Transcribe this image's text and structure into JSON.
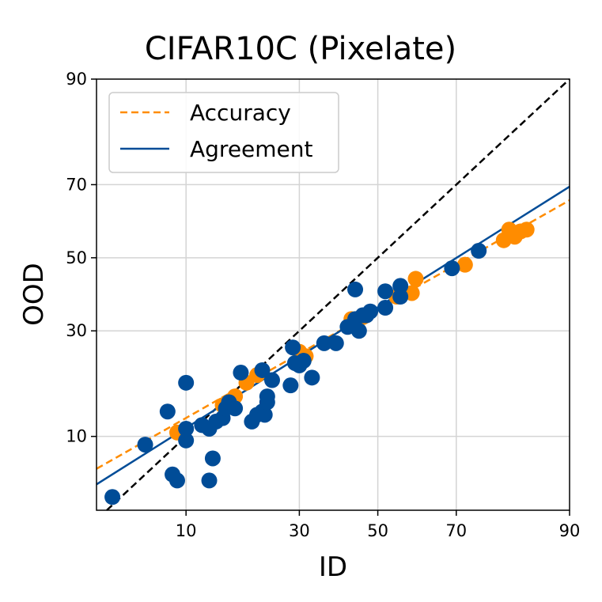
{
  "chart_data": {
    "type": "scatter",
    "title": "CIFAR10C (Pixelate)",
    "xlabel": "ID",
    "ylabel": "OOD",
    "xscale": "probit",
    "yscale": "probit",
    "xlim": [
      3,
      90
    ],
    "ylim": [
      3.5,
      90
    ],
    "xticks": [
      10,
      30,
      50,
      70,
      90
    ],
    "yticks": [
      10,
      30,
      50,
      70,
      90
    ],
    "grid": true,
    "legend": "top-left",
    "colors": {
      "accuracy": "#ff8c00",
      "agreement": "#004c97",
      "diagonal": "#000000",
      "grid": "#d4d4d4"
    },
    "series": [
      {
        "name": "Accuracy",
        "style": "dashed",
        "points": [
          [
            9,
            10.5
          ],
          [
            15,
            14.5
          ],
          [
            17,
            16
          ],
          [
            19,
            18.5
          ],
          [
            21,
            20
          ],
          [
            30,
            25
          ],
          [
            31.5,
            24
          ],
          [
            43,
            33
          ],
          [
            46,
            33.5
          ],
          [
            55,
            39
          ],
          [
            59,
            40
          ],
          [
            60,
            44
          ],
          [
            72,
            48
          ],
          [
            80,
            55
          ],
          [
            81,
            58
          ],
          [
            82,
            56
          ],
          [
            83,
            57.5
          ],
          [
            84,
            58
          ]
        ],
        "fit": [
          [
            3,
            6.5
          ],
          [
            90,
            66
          ]
        ]
      },
      {
        "name": "Agreement",
        "style": "solid",
        "points": [
          [
            3.8,
            4.3
          ],
          [
            6,
            9
          ],
          [
            8,
            13.5
          ],
          [
            8.5,
            6
          ],
          [
            9,
            5.5
          ],
          [
            10,
            9.5
          ],
          [
            10,
            11
          ],
          [
            10,
            18.5
          ],
          [
            12,
            11.5
          ],
          [
            13,
            11
          ],
          [
            13,
            5.5
          ],
          [
            13.5,
            7.5
          ],
          [
            14,
            12
          ],
          [
            15,
            12.5
          ],
          [
            15.5,
            14
          ],
          [
            16,
            15
          ],
          [
            17,
            14
          ],
          [
            18,
            20.5
          ],
          [
            20,
            12
          ],
          [
            21,
            13
          ],
          [
            22,
            13.5
          ],
          [
            22,
            21
          ],
          [
            22.5,
            13
          ],
          [
            23,
            15
          ],
          [
            23,
            16
          ],
          [
            24,
            19
          ],
          [
            28,
            18
          ],
          [
            28.5,
            26
          ],
          [
            29,
            22.5
          ],
          [
            30,
            22
          ],
          [
            31,
            23
          ],
          [
            33,
            19.5
          ],
          [
            36,
            27
          ],
          [
            39,
            27
          ],
          [
            42,
            31
          ],
          [
            44,
            33
          ],
          [
            44,
            41
          ],
          [
            45,
            30
          ],
          [
            46,
            34
          ],
          [
            47,
            34
          ],
          [
            48,
            35
          ],
          [
            52,
            36
          ],
          [
            52,
            40.5
          ],
          [
            56,
            42
          ],
          [
            56,
            39
          ],
          [
            69,
            47
          ],
          [
            75,
            52
          ]
        ],
        "fit": [
          [
            3,
            5.2
          ],
          [
            90,
            69.5
          ]
        ]
      },
      {
        "name": "",
        "style": "dashed",
        "fit": [
          [
            3.5,
            3.5
          ],
          [
            90,
            90
          ]
        ]
      }
    ]
  }
}
